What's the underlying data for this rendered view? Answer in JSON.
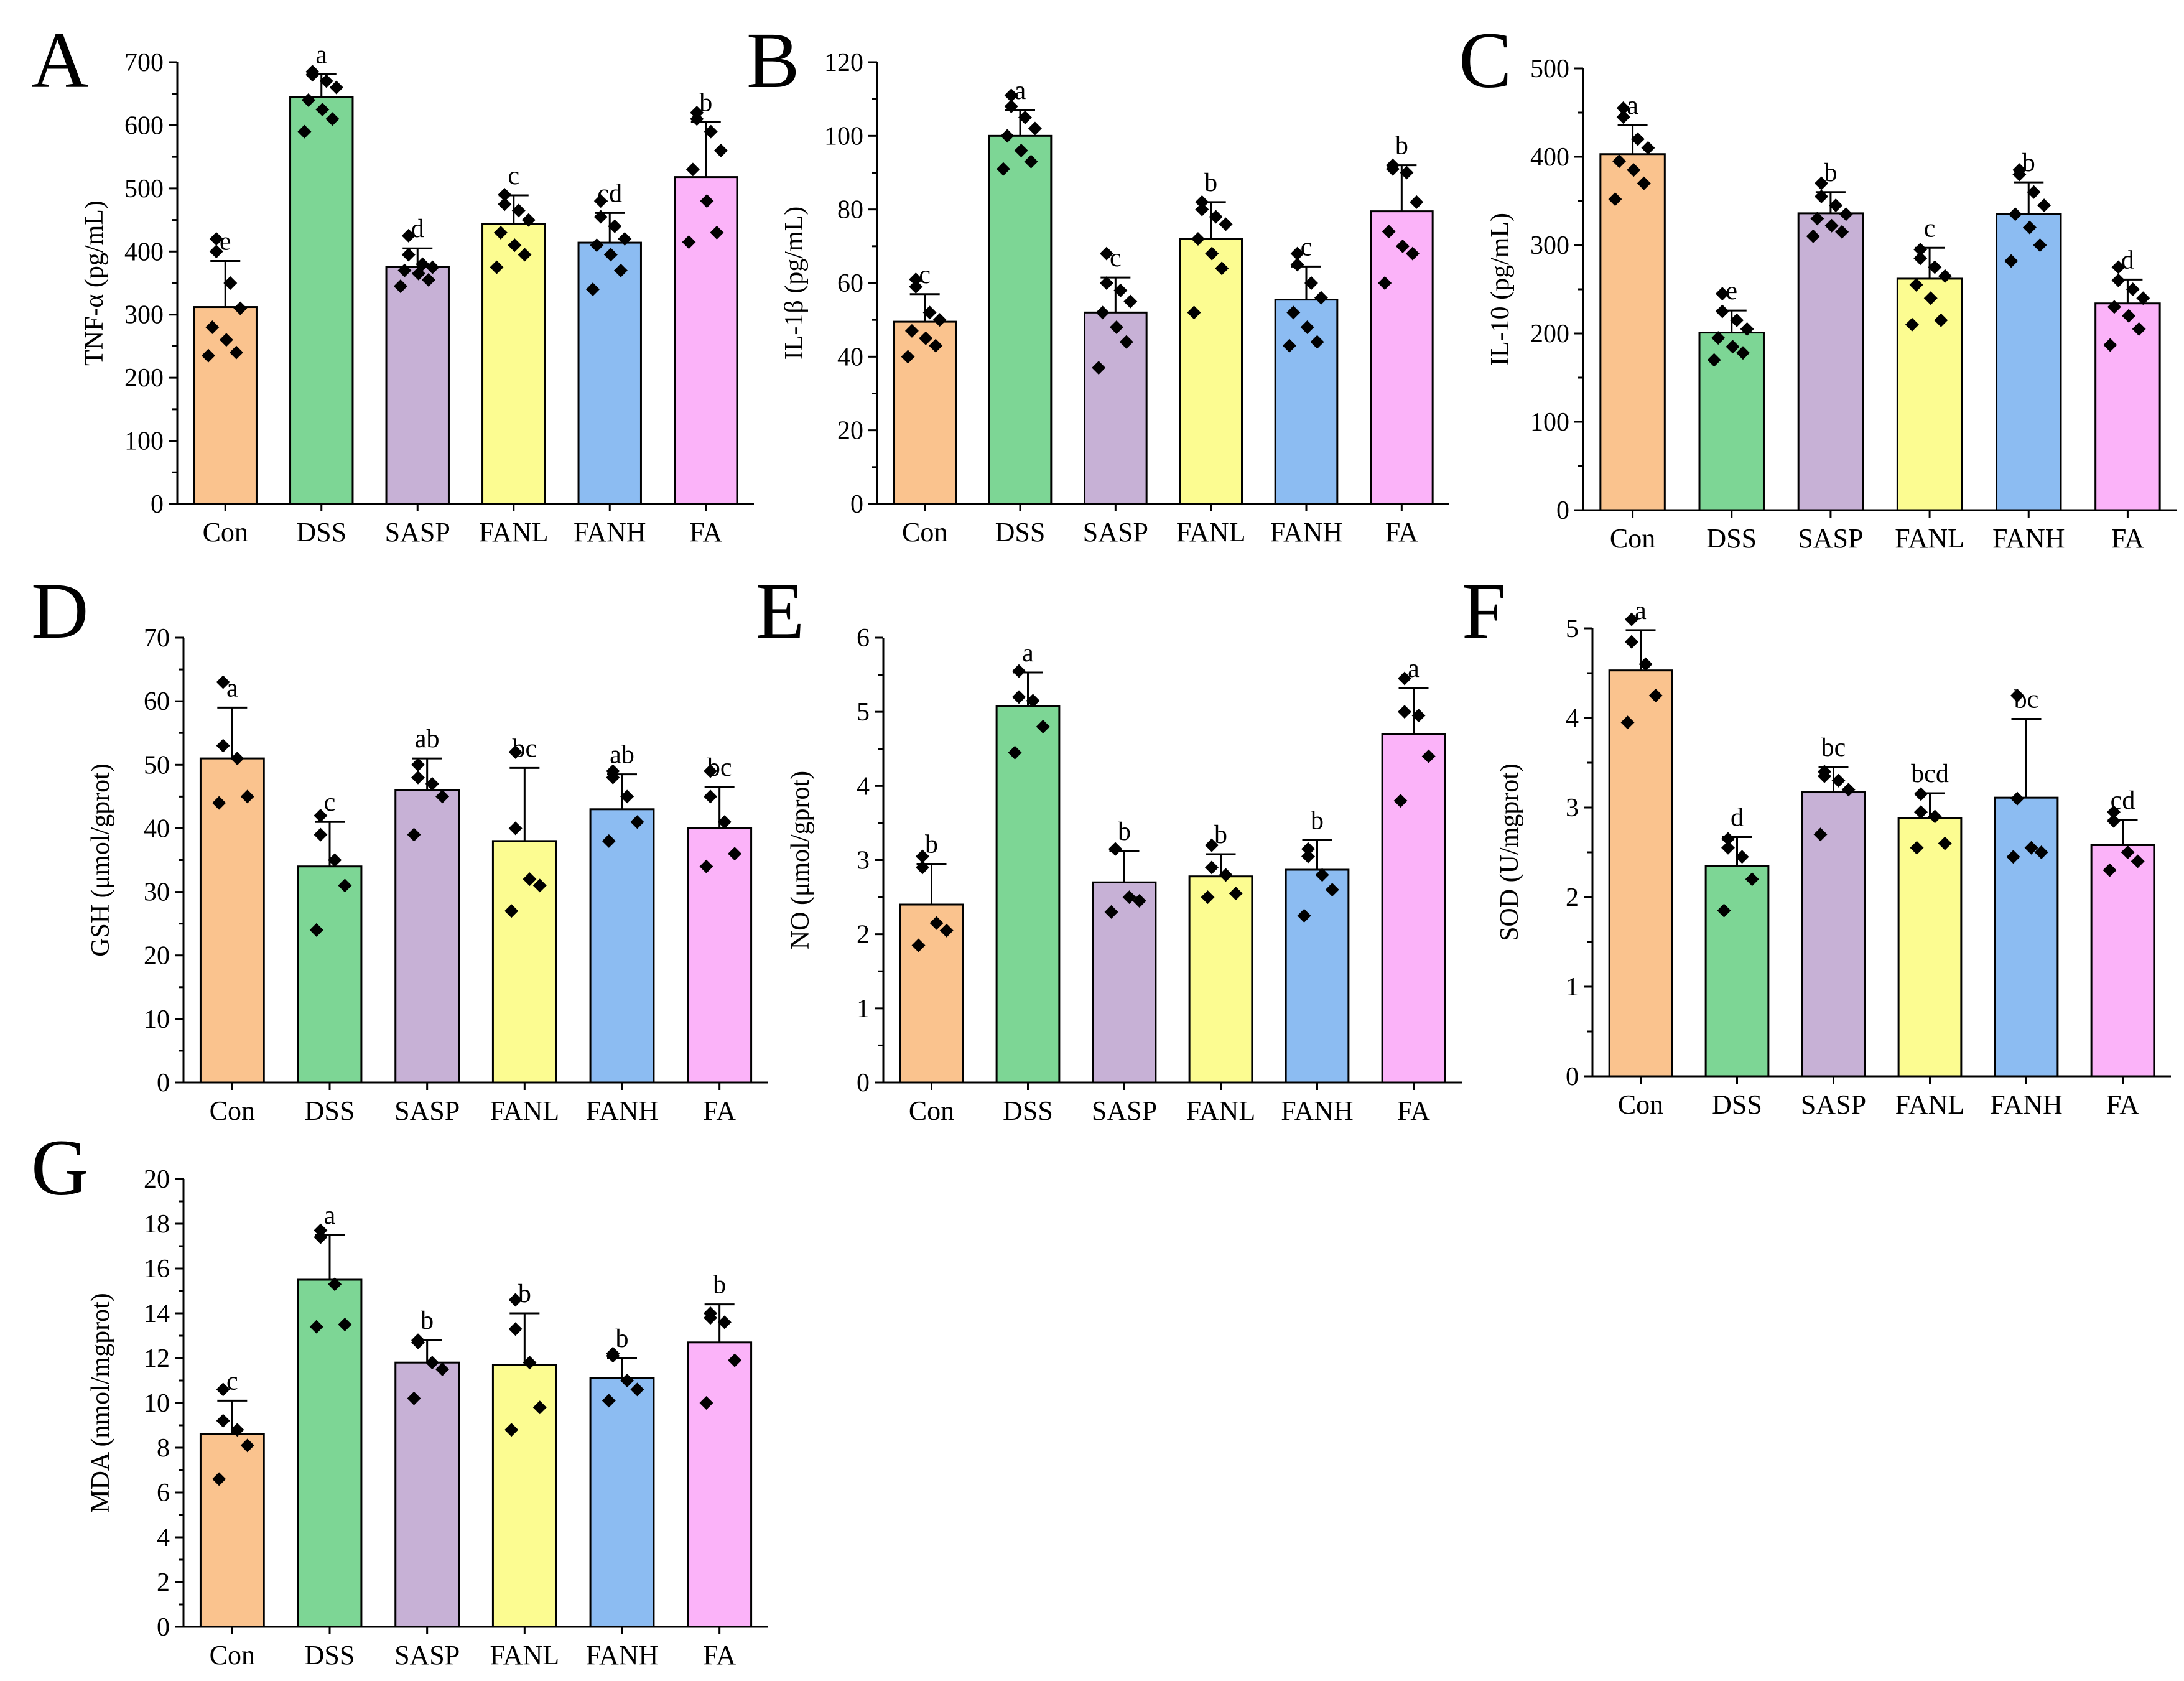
{
  "figure": {
    "categories": [
      "Con",
      "DSS",
      "SASP",
      "FANL",
      "FANH",
      "FA"
    ]
  },
  "colors": [
    "#FAC38E",
    "#7DD695",
    "#C7B1D6",
    "#FCFC91",
    "#8CBCF2",
    "#FBB3F9"
  ],
  "chart_data": [
    {
      "panel": "A",
      "type": "bar",
      "ylabel": "TNF-α (pg/mL)",
      "categories": [
        "Con",
        "DSS",
        "SASP",
        "FANL",
        "FANH",
        "FA"
      ],
      "ylim": [
        0,
        700
      ],
      "yticks": [
        0,
        100,
        200,
        300,
        400,
        500,
        600,
        700
      ],
      "values": [
        312,
        645,
        376,
        444,
        414,
        518
      ],
      "errors": [
        73,
        36,
        29,
        45,
        47,
        87
      ],
      "letters": [
        "e",
        "a",
        "d",
        "c",
        "cd",
        "b"
      ],
      "points": [
        [
          420,
          400,
          350,
          310,
          280,
          260,
          240,
          235
        ],
        [
          685,
          680,
          670,
          660,
          640,
          625,
          610,
          590
        ],
        [
          425,
          395,
          380,
          375,
          370,
          365,
          355,
          345
        ],
        [
          490,
          475,
          465,
          450,
          430,
          410,
          395,
          375
        ],
        [
          480,
          455,
          440,
          420,
          410,
          395,
          370,
          340
        ],
        [
          620,
          610,
          590,
          560,
          530,
          480,
          430,
          415
        ]
      ]
    },
    {
      "panel": "B",
      "type": "bar",
      "ylabel": "IL-1β (pg/mL)",
      "categories": [
        "Con",
        "DSS",
        "SASP",
        "FANL",
        "FANH",
        "FA"
      ],
      "ylim": [
        0,
        120
      ],
      "yticks": [
        0,
        20,
        40,
        60,
        80,
        100,
        120
      ],
      "values": [
        49.5,
        100,
        52,
        72,
        55.5,
        79.5
      ],
      "errors": [
        7.5,
        7,
        9.5,
        10,
        9,
        12.5
      ],
      "letters": [
        "c",
        "a",
        "c",
        "b",
        "c",
        "b"
      ],
      "points": [
        [
          61,
          59,
          52,
          50,
          47,
          45,
          43,
          40
        ],
        [
          111,
          108,
          105,
          102,
          100,
          96,
          93,
          91
        ],
        [
          68,
          60,
          58,
          55,
          52,
          48,
          44,
          37
        ],
        [
          82,
          80,
          78,
          76,
          72,
          68,
          64,
          52
        ],
        [
          68,
          65,
          60,
          56,
          52,
          48,
          44,
          43
        ],
        [
          92,
          91,
          90,
          82,
          74,
          70,
          68,
          60
        ]
      ]
    },
    {
      "panel": "C",
      "type": "bar",
      "ylabel": "IL-10 (pg/mL)",
      "categories": [
        "Con",
        "DSS",
        "SASP",
        "FANL",
        "FANH",
        "FA"
      ],
      "ylim": [
        0,
        500
      ],
      "yticks": [
        0,
        100,
        200,
        300,
        400,
        500
      ],
      "values": [
        403,
        201,
        336,
        262,
        335,
        234
      ],
      "errors": [
        33,
        25,
        24,
        35,
        36,
        27
      ],
      "letters": [
        "a",
        "e",
        "b",
        "c",
        "b",
        "d"
      ],
      "points": [
        [
          455,
          445,
          420,
          410,
          395,
          385,
          370,
          352
        ],
        [
          245,
          225,
          215,
          205,
          195,
          185,
          178,
          170
        ],
        [
          370,
          355,
          345,
          335,
          330,
          322,
          315,
          310
        ],
        [
          295,
          285,
          275,
          265,
          255,
          240,
          215,
          210
        ],
        [
          385,
          380,
          360,
          345,
          335,
          320,
          300,
          282
        ],
        [
          275,
          260,
          250,
          240,
          230,
          220,
          205,
          187
        ]
      ]
    },
    {
      "panel": "D",
      "type": "bar",
      "ylabel": "GSH (μmol/gprot)",
      "categories": [
        "Con",
        "DSS",
        "SASP",
        "FANL",
        "FANH",
        "FA"
      ],
      "ylim": [
        0,
        70
      ],
      "yticks": [
        0,
        10,
        20,
        30,
        40,
        50,
        60,
        70
      ],
      "values": [
        51,
        34,
        46,
        38,
        43,
        40
      ],
      "errors": [
        8,
        7,
        5,
        11.5,
        5.5,
        6.5
      ],
      "letters": [
        "a",
        "c",
        "ab",
        "bc",
        "ab",
        "bc"
      ],
      "points": [
        [
          63,
          53,
          51,
          45,
          44
        ],
        [
          42,
          39,
          35,
          31,
          24
        ],
        [
          50,
          48,
          47,
          45,
          39
        ],
        [
          52,
          40,
          32,
          31,
          27
        ],
        [
          49,
          48,
          45,
          41,
          38
        ],
        [
          49,
          45,
          41,
          36,
          34
        ]
      ]
    },
    {
      "panel": "E",
      "type": "bar",
      "ylabel": "NO (μmol/gprot)",
      "categories": [
        "Con",
        "DSS",
        "SASP",
        "FANL",
        "FANH",
        "FA"
      ],
      "ylim": [
        0,
        6
      ],
      "yticks": [
        0,
        1,
        2,
        3,
        4,
        5,
        6
      ],
      "values": [
        2.4,
        5.08,
        2.7,
        2.78,
        2.87,
        4.7
      ],
      "errors": [
        0.55,
        0.45,
        0.42,
        0.3,
        0.4,
        0.62
      ],
      "letters": [
        "b",
        "a",
        "b",
        "b",
        "b",
        "a"
      ],
      "points": [
        [
          3.05,
          2.9,
          2.15,
          2.05,
          1.85
        ],
        [
          5.55,
          5.2,
          5.15,
          4.8,
          4.45
        ],
        [
          3.15,
          3.15,
          2.5,
          2.45,
          2.3
        ],
        [
          3.2,
          2.9,
          2.8,
          2.55,
          2.5
        ],
        [
          3.15,
          3.05,
          2.8,
          2.6,
          2.25
        ],
        [
          5.45,
          5.0,
          4.95,
          4.4,
          3.8
        ]
      ]
    },
    {
      "panel": "F",
      "type": "bar",
      "ylabel": "SOD (U/mgprot)",
      "categories": [
        "Con",
        "DSS",
        "SASP",
        "FANL",
        "FANH",
        "FA"
      ],
      "ylim": [
        0,
        5
      ],
      "yticks": [
        0,
        1,
        2,
        3,
        4,
        5
      ],
      "values": [
        4.53,
        2.35,
        3.17,
        2.88,
        3.11,
        2.58
      ],
      "errors": [
        0.45,
        0.32,
        0.28,
        0.28,
        0.88,
        0.28
      ],
      "letters": [
        "a",
        "d",
        "bc",
        "bcd",
        "bc",
        "cd"
      ],
      "points": [
        [
          5.1,
          4.85,
          4.6,
          4.25,
          3.95
        ],
        [
          2.65,
          2.55,
          2.45,
          2.2,
          1.85
        ],
        [
          3.4,
          3.35,
          3.3,
          3.2,
          2.7
        ],
        [
          3.15,
          2.95,
          2.9,
          2.6,
          2.55
        ],
        [
          4.25,
          3.1,
          2.55,
          2.5,
          2.45
        ],
        [
          2.95,
          2.85,
          2.5,
          2.4,
          2.3
        ]
      ]
    },
    {
      "panel": "G",
      "type": "bar",
      "ylabel": "MDA (nmol/mgprot)",
      "categories": [
        "Con",
        "DSS",
        "SASP",
        "FANL",
        "FANH",
        "FA"
      ],
      "ylim": [
        0,
        20
      ],
      "yticks": [
        0,
        2,
        4,
        6,
        8,
        10,
        12,
        14,
        16,
        18,
        20
      ],
      "values": [
        8.6,
        15.5,
        11.8,
        11.7,
        11.1,
        12.7
      ],
      "errors": [
        1.5,
        2.0,
        1.0,
        2.3,
        0.9,
        1.7
      ],
      "letters": [
        "c",
        "a",
        "b",
        "b",
        "b",
        "b"
      ],
      "points": [
        [
          10.6,
          9.2,
          8.8,
          8.1,
          6.6
        ],
        [
          17.7,
          17.4,
          15.3,
          13.5,
          13.4
        ],
        [
          12.8,
          12.7,
          11.8,
          11.5,
          10.2
        ],
        [
          14.6,
          13.3,
          11.8,
          9.8,
          8.8
        ],
        [
          12.2,
          12.1,
          11.0,
          10.6,
          10.1
        ],
        [
          14.0,
          13.8,
          13.6,
          11.9,
          10.0
        ]
      ]
    }
  ]
}
